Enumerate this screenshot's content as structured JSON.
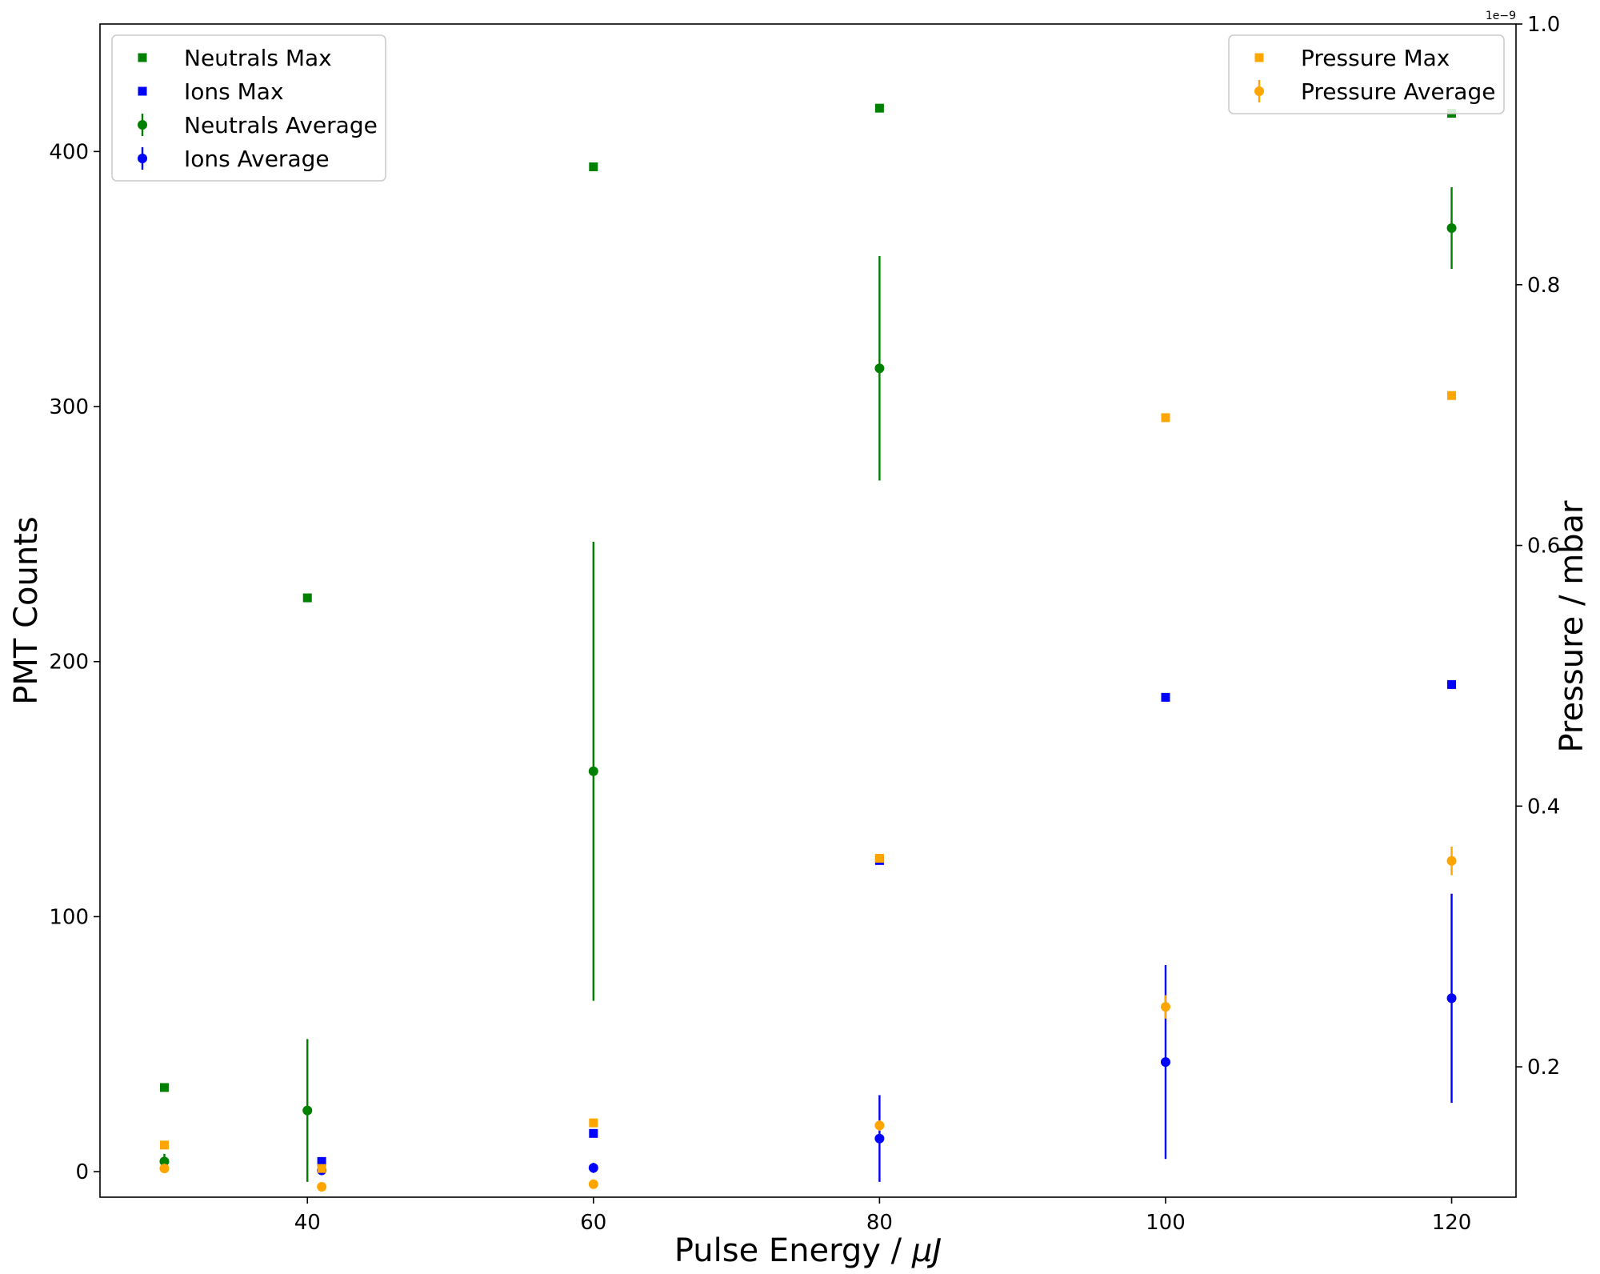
{
  "chart_data": {
    "type": "scatter",
    "title": "",
    "xlabel_prefix": "Pulse Energy / ",
    "xlabel_symbol": "μJ",
    "ylabel": "PMT Counts",
    "y2label": "Pressure / mbar",
    "y2_offset_text": "1e−9",
    "xlim": [
      25.5,
      124.5
    ],
    "ylim": [
      -10,
      450
    ],
    "y2lim": [
      0.1,
      1.0
    ],
    "xticks": [
      40,
      60,
      80,
      100,
      120
    ],
    "yticks": [
      0,
      100,
      200,
      300,
      400
    ],
    "y2ticks": [
      0.2,
      0.4,
      0.6,
      0.8,
      1.0
    ],
    "y2tick_labels": [
      "0.2",
      "0.4",
      "0.6",
      "0.8",
      "1.0"
    ],
    "grid": false,
    "legend_left": "upper-left",
    "legend_right": "upper-right",
    "colors": {
      "neutrals": "#008000",
      "ions": "#0000ff",
      "pressure": "#ffa500"
    },
    "series": [
      {
        "name": "Neutrals Max",
        "axis": "left",
        "marker": "square",
        "color": "#008000",
        "points": [
          {
            "x": 30,
            "y": 33
          },
          {
            "x": 40,
            "y": 225
          },
          {
            "x": 60,
            "y": 394
          },
          {
            "x": 80,
            "y": 417
          },
          {
            "x": 120,
            "y": 415
          }
        ]
      },
      {
        "name": "Ions Max",
        "axis": "left",
        "marker": "square",
        "color": "#0000ff",
        "points": [
          {
            "x": 41,
            "y": 4
          },
          {
            "x": 60,
            "y": 15
          },
          {
            "x": 80,
            "y": 122
          },
          {
            "x": 100,
            "y": 186
          },
          {
            "x": 120,
            "y": 191
          }
        ]
      },
      {
        "name": "Neutrals Average",
        "axis": "left",
        "marker": "circle",
        "color": "#008000",
        "points": [
          {
            "x": 30,
            "y": 4,
            "err": 3
          },
          {
            "x": 40,
            "y": 24,
            "err": 28
          },
          {
            "x": 60,
            "y": 157,
            "err": 90
          },
          {
            "x": 80,
            "y": 315,
            "err": 44
          },
          {
            "x": 120,
            "y": 370,
            "err": 16
          }
        ]
      },
      {
        "name": "Ions Average",
        "axis": "left",
        "marker": "circle",
        "color": "#0000ff",
        "points": [
          {
            "x": 41,
            "y": 0.5,
            "err": 0.8
          },
          {
            "x": 60,
            "y": 1.5,
            "err": 2
          },
          {
            "x": 80,
            "y": 13,
            "err": 17
          },
          {
            "x": 100,
            "y": 43,
            "err": 38
          },
          {
            "x": 120,
            "y": 68,
            "err": 41
          }
        ]
      },
      {
        "name": "Pressure Max",
        "axis": "right",
        "marker": "square",
        "color": "#ffa500",
        "points": [
          {
            "x": 30,
            "y": 0.14
          },
          {
            "x": 41,
            "y": 0.122
          },
          {
            "x": 60,
            "y": 0.157
          },
          {
            "x": 80,
            "y": 0.36
          },
          {
            "x": 100,
            "y": 0.698
          },
          {
            "x": 120,
            "y": 0.715
          }
        ]
      },
      {
        "name": "Pressure Average",
        "axis": "right",
        "marker": "circle",
        "color": "#ffa500",
        "points": [
          {
            "x": 30,
            "y": 0.122,
            "err": 0.002
          },
          {
            "x": 41,
            "y": 0.108,
            "err": 0.002
          },
          {
            "x": 60,
            "y": 0.11,
            "err": 0.002
          },
          {
            "x": 80,
            "y": 0.155,
            "err": 0.004
          },
          {
            "x": 100,
            "y": 0.246,
            "err": 0.009
          },
          {
            "x": 120,
            "y": 0.358,
            "err": 0.011
          }
        ]
      }
    ]
  }
}
